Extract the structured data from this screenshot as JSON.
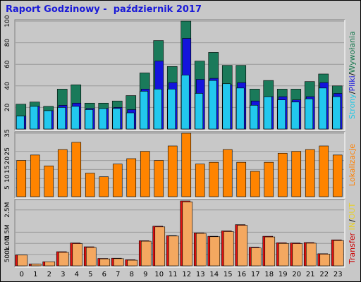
{
  "title": "Raport Godzinowy -  październik 2017",
  "chart_data": [
    {
      "type": "bar",
      "name": "hits",
      "legend_title_parts": [
        {
          "text": "Strony",
          "color": "#1ec8e6"
        },
        {
          "text": "/",
          "color": "#000000"
        },
        {
          "text": "Pliki",
          "color": "#1616e0"
        },
        {
          "text": "/",
          "color": "#000000"
        },
        {
          "text": "Wywołania",
          "color": "#1a7a50"
        }
      ],
      "categories": [
        "0",
        "1",
        "2",
        "3",
        "4",
        "5",
        "6",
        "7",
        "8",
        "9",
        "10",
        "11",
        "12",
        "13",
        "14",
        "15",
        "16",
        "17",
        "18",
        "19",
        "20",
        "21",
        "22",
        "23"
      ],
      "ylim": [
        0,
        100
      ],
      "yticks": [
        20,
        40,
        60,
        80,
        100
      ],
      "series": [
        {
          "name": "Wywołania",
          "color": "#1a7a5a",
          "values": [
            23,
            25,
            21,
            37,
            41,
            24,
            24,
            26,
            31,
            52,
            82,
            58,
            100,
            63,
            71,
            59,
            59,
            37,
            45,
            37,
            37,
            44,
            51,
            40
          ]
        },
        {
          "name": "Pliki",
          "color": "#1414dc",
          "values": [
            12,
            21,
            17,
            22,
            24,
            19,
            19,
            20,
            18,
            37,
            63,
            43,
            84,
            46,
            47,
            41,
            43,
            26,
            30,
            30,
            27,
            30,
            43,
            33
          ]
        },
        {
          "name": "Strony",
          "color": "#22c8ee",
          "values": [
            12,
            21,
            17,
            20,
            21,
            18,
            19,
            19,
            15,
            35,
            37,
            37,
            50,
            33,
            45,
            42,
            38,
            22,
            30,
            27,
            25,
            28,
            38,
            30
          ]
        }
      ]
    },
    {
      "type": "bar",
      "name": "visits",
      "legend_title_parts": [
        {
          "text": "Lokalizacje",
          "color": "#ff8000"
        }
      ],
      "categories": [
        "0",
        "1",
        "2",
        "3",
        "4",
        "5",
        "6",
        "7",
        "8",
        "9",
        "10",
        "11",
        "12",
        "13",
        "14",
        "15",
        "16",
        "17",
        "18",
        "19",
        "20",
        "21",
        "22",
        "23"
      ],
      "ylim": [
        0,
        35
      ],
      "yticks": [
        5,
        10,
        15,
        20,
        25,
        35
      ],
      "series": [
        {
          "name": "Lokalizacje",
          "color": "#ff8400",
          "values": [
            20,
            23,
            17,
            26,
            30,
            13,
            11,
            18,
            21,
            25,
            20,
            28,
            35,
            18,
            19,
            26,
            19,
            14,
            19,
            24,
            25,
            26,
            28,
            23
          ]
        }
      ]
    },
    {
      "type": "bar",
      "name": "transfer",
      "legend_title_parts": [
        {
          "text": "Transfer",
          "color": "#cc0000"
        },
        {
          "text": "IN",
          "color": "#e8d028"
        },
        {
          "text": "/",
          "color": "#000000"
        },
        {
          "text": "OUT",
          "color": "#e8d028"
        }
      ],
      "categories": [
        "0",
        "1",
        "2",
        "3",
        "4",
        "5",
        "6",
        "7",
        "8",
        "9",
        "10",
        "11",
        "12",
        "13",
        "14",
        "15",
        "16",
        "17",
        "18",
        "19",
        "20",
        "21",
        "22",
        "23"
      ],
      "ylim": [
        0,
        2.9
      ],
      "ytick_labels": [
        "500k",
        "1.0M",
        "1.5M",
        "2.5M"
      ],
      "ytick_values": [
        0.5,
        1.0,
        1.5,
        2.5
      ],
      "series": [
        {
          "name": "IN",
          "color": "#e01010",
          "values": [
            0.48,
            0.08,
            0.18,
            0.63,
            1.02,
            0.85,
            0.33,
            0.34,
            0.27,
            1.12,
            1.77,
            1.35,
            2.9,
            1.47,
            1.32,
            1.56,
            1.84,
            0.83,
            1.32,
            1.03,
            1.02,
            1.04,
            0.54,
            1.16
          ]
        },
        {
          "name": "OUT",
          "color": "#f4a860",
          "values": [
            0.48,
            0.08,
            0.18,
            0.6,
            0.99,
            0.82,
            0.31,
            0.32,
            0.25,
            1.1,
            1.74,
            1.33,
            2.86,
            1.45,
            1.3,
            1.53,
            1.81,
            0.8,
            1.29,
            1.0,
            0.99,
            1.01,
            0.52,
            1.13
          ]
        }
      ]
    }
  ]
}
